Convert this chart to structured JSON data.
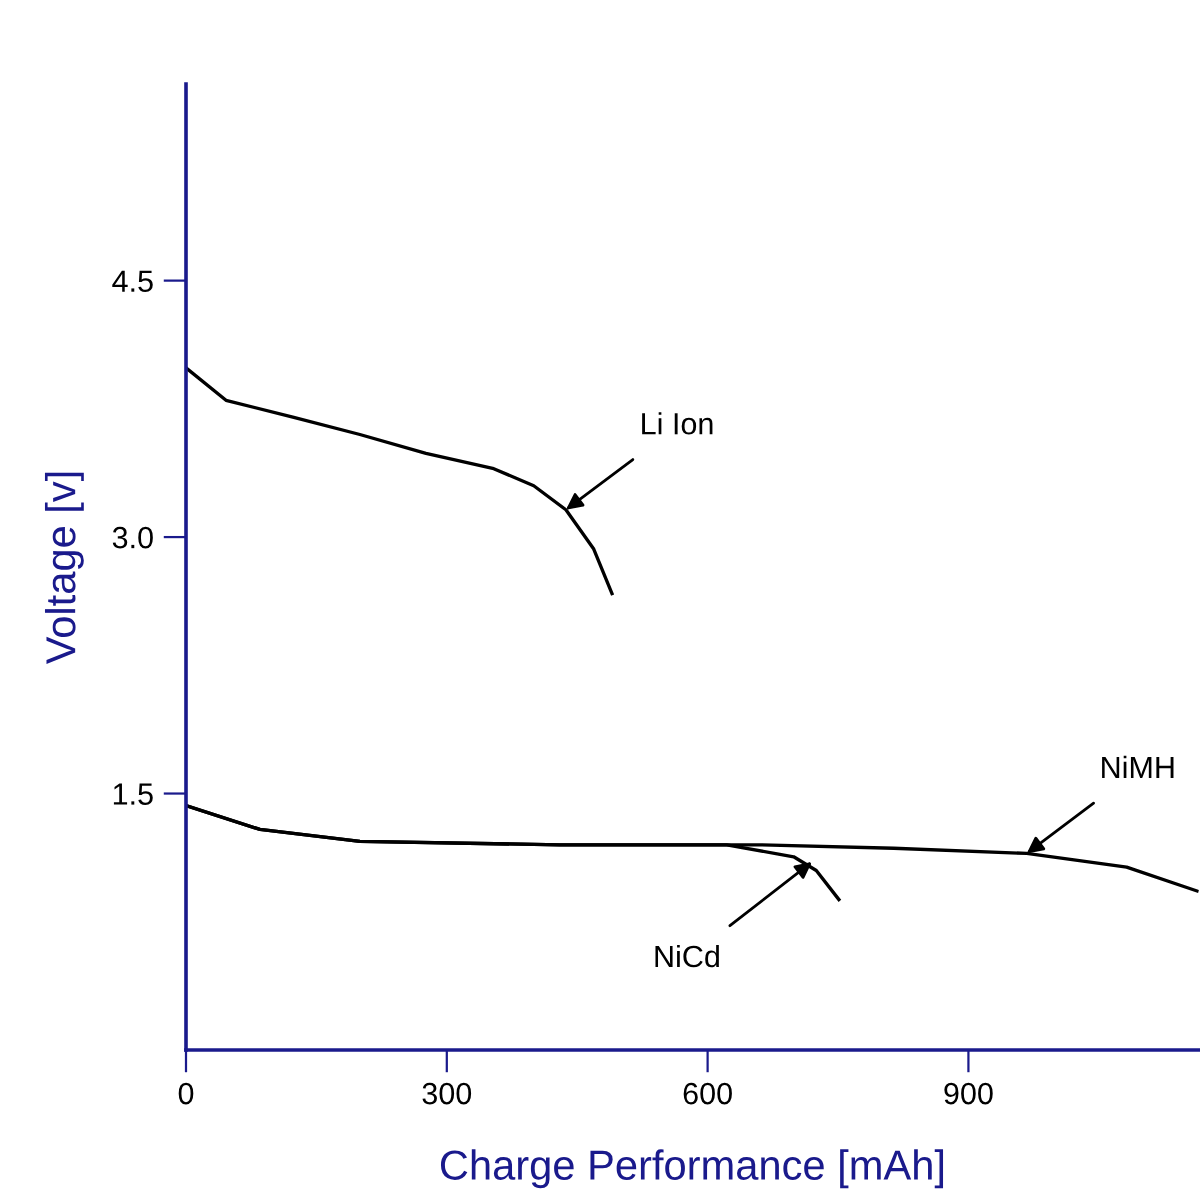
{
  "chart_data": {
    "type": "line",
    "xlabel": "Charge Performance [mAh]",
    "ylabel": "Voltage [v]",
    "xlim": [
      0,
      1165
    ],
    "ylim": [
      0,
      5.65
    ],
    "xticks": [
      0,
      300,
      600,
      900
    ],
    "yticks": [
      {
        "value": 1.5,
        "label": "1.5"
      },
      {
        "value": 3.0,
        "label": "3.0"
      },
      {
        "value": 4.5,
        "label": "4.5"
      }
    ],
    "grid": false,
    "legend": false,
    "marker": "none",
    "line_style": "solid",
    "series": [
      {
        "color": "#000000",
        "x": [
          0,
          46,
          124,
          200,
          276,
          354,
          400,
          437,
          469,
          490
        ],
        "values": [
          3.99,
          3.8,
          3.7,
          3.6,
          3.49,
          3.4,
          3.3,
          3.16,
          2.93,
          2.67
        ]
      },
      {
        "color": "#000000",
        "x": [
          0,
          85,
          200,
          430,
          622,
          699,
          725,
          751
        ],
        "values": [
          1.43,
          1.29,
          1.22,
          1.2,
          1.2,
          1.13,
          1.05,
          0.88
        ]
      },
      {
        "color": "#000000",
        "x": [
          0,
          85,
          200,
          430,
          661,
          814,
          967,
          1082,
          1163
        ],
        "values": [
          1.43,
          1.29,
          1.22,
          1.2,
          1.2,
          1.18,
          1.15,
          1.07,
          0.93
        ]
      }
    ],
    "annotations": [
      {
        "text": "Li Ion",
        "x": 437,
        "y": 3.16
      },
      {
        "text": "NiCd",
        "x": 720,
        "y": 1.1
      },
      {
        "text": "NiMH",
        "x": 967,
        "y": 1.15
      }
    ]
  }
}
